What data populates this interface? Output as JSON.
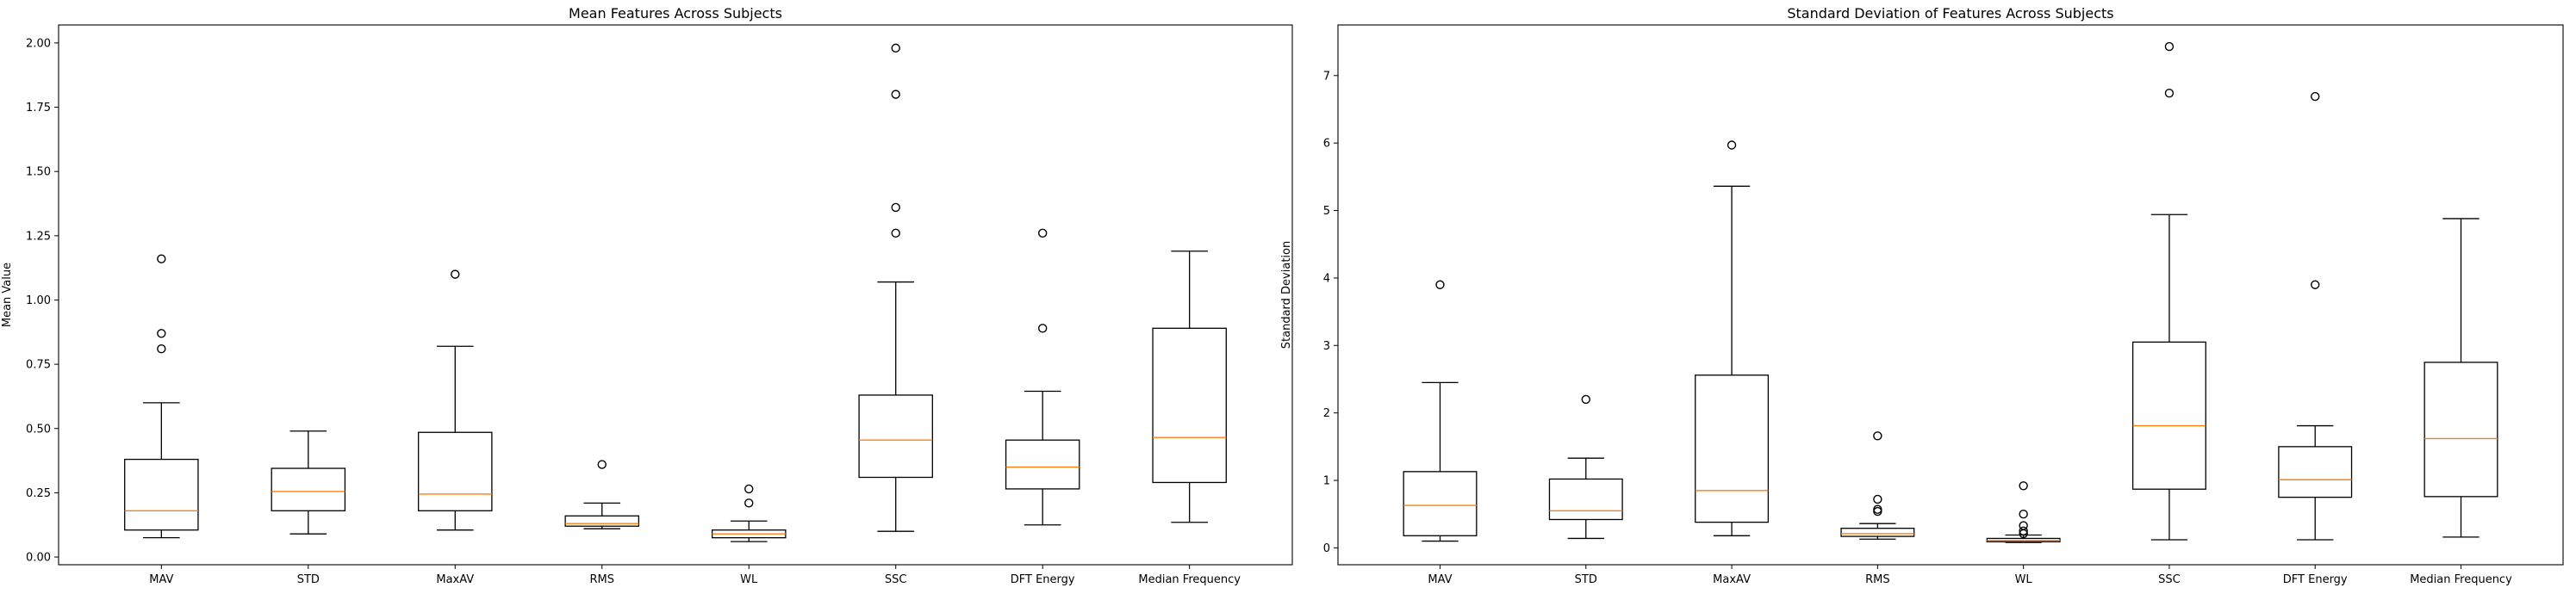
{
  "chart_data": [
    {
      "type": "box",
      "title": "Mean Features Across Subjects",
      "xlabel": "",
      "ylabel": "Mean Value",
      "ylim": [
        -0.03,
        2.07
      ],
      "yticks": [
        0.0,
        0.25,
        0.5,
        0.75,
        1.0,
        1.25,
        1.5,
        1.75,
        2.0
      ],
      "ytick_labels": [
        "0.00",
        "0.25",
        "0.50",
        "0.75",
        "1.00",
        "1.25",
        "1.50",
        "1.75",
        "2.00"
      ],
      "grid": false,
      "categories": [
        "MAV",
        "STD",
        "MaxAV",
        "RMS",
        "WL",
        "SSC",
        "DFT Energy",
        "Median Frequency"
      ],
      "boxes": [
        {
          "whislo": 0.075,
          "q1": 0.105,
          "med": 0.18,
          "q3": 0.38,
          "whishi": 0.6,
          "fliers": [
            0.81,
            0.87,
            1.16
          ]
        },
        {
          "whislo": 0.09,
          "q1": 0.18,
          "med": 0.255,
          "q3": 0.345,
          "whishi": 0.49,
          "fliers": []
        },
        {
          "whislo": 0.105,
          "q1": 0.18,
          "med": 0.245,
          "q3": 0.485,
          "whishi": 0.82,
          "fliers": [
            1.1
          ]
        },
        {
          "whislo": 0.11,
          "q1": 0.12,
          "med": 0.13,
          "q3": 0.16,
          "whishi": 0.21,
          "fliers": [
            0.36
          ]
        },
        {
          "whislo": 0.06,
          "q1": 0.075,
          "med": 0.09,
          "q3": 0.105,
          "whishi": 0.14,
          "fliers": [
            0.21,
            0.265
          ]
        },
        {
          "whislo": 0.1,
          "q1": 0.31,
          "med": 0.455,
          "q3": 0.63,
          "whishi": 1.07,
          "fliers": [
            1.26,
            1.36,
            1.8,
            1.98
          ]
        },
        {
          "whislo": 0.125,
          "q1": 0.265,
          "med": 0.35,
          "q3": 0.455,
          "whishi": 0.645,
          "fliers": [
            0.89,
            1.26
          ]
        },
        {
          "whislo": 0.135,
          "q1": 0.29,
          "med": 0.465,
          "q3": 0.89,
          "whishi": 1.19,
          "fliers": []
        }
      ]
    },
    {
      "type": "box",
      "title": "Standard Deviation of Features Across Subjects",
      "xlabel": "",
      "ylabel": "Standard Deviation",
      "ylim": [
        -0.25,
        7.75
      ],
      "yticks": [
        0,
        1,
        2,
        3,
        4,
        5,
        6,
        7
      ],
      "ytick_labels": [
        "0",
        "1",
        "2",
        "3",
        "4",
        "5",
        "6",
        "7"
      ],
      "grid": false,
      "categories": [
        "MAV",
        "STD",
        "MaxAV",
        "RMS",
        "WL",
        "SSC",
        "DFT Energy",
        "Median Frequency"
      ],
      "boxes": [
        {
          "whislo": 0.1,
          "q1": 0.18,
          "med": 0.63,
          "q3": 1.13,
          "whishi": 2.45,
          "fliers": [
            3.9
          ]
        },
        {
          "whislo": 0.14,
          "q1": 0.42,
          "med": 0.55,
          "q3": 1.02,
          "whishi": 1.33,
          "fliers": [
            2.2
          ]
        },
        {
          "whislo": 0.18,
          "q1": 0.38,
          "med": 0.85,
          "q3": 2.56,
          "whishi": 5.36,
          "fliers": [
            5.97
          ]
        },
        {
          "whislo": 0.13,
          "q1": 0.17,
          "med": 0.21,
          "q3": 0.29,
          "whishi": 0.36,
          "fliers": [
            0.54,
            0.57,
            0.72,
            1.66
          ]
        },
        {
          "whislo": 0.08,
          "q1": 0.09,
          "med": 0.11,
          "q3": 0.14,
          "whishi": 0.19,
          "fliers": [
            0.21,
            0.25,
            0.33,
            0.5,
            0.92
          ]
        },
        {
          "whislo": 0.12,
          "q1": 0.87,
          "med": 1.81,
          "q3": 3.05,
          "whishi": 4.94,
          "fliers": [
            6.74,
            7.43
          ]
        },
        {
          "whislo": 0.12,
          "q1": 0.75,
          "med": 1.01,
          "q3": 1.5,
          "whishi": 1.81,
          "fliers": [
            3.9,
            6.69
          ]
        },
        {
          "whislo": 0.16,
          "q1": 0.76,
          "med": 1.62,
          "q3": 2.75,
          "whishi": 4.88,
          "fliers": []
        }
      ]
    }
  ]
}
